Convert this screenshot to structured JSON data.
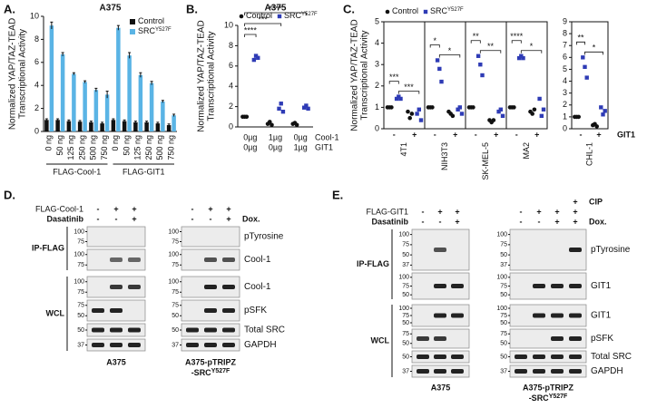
{
  "chart_data": [
    {
      "type": "bar",
      "panel_label": "A.",
      "title": "A375",
      "y_label": [
        "Normalized YAP/TAZ-TEAD",
        "Transcriptional Activity"
      ],
      "categories": [
        "0 ng",
        "50 ng",
        "125 ng",
        "250 ng",
        "500 ng",
        "750 ng",
        "0 ng",
        "50 ng",
        "125 ng",
        "250 ng",
        "500 ng",
        "750 ng"
      ],
      "group_labels": [
        "FLAG-Cool-1",
        "FLAG-GIT1"
      ],
      "series": [
        {
          "name": "Control",
          "color": "#111111",
          "values": [
            1.0,
            1.0,
            0.9,
            0.85,
            0.8,
            0.7,
            1.0,
            0.9,
            0.8,
            0.8,
            0.7,
            0.55
          ],
          "errors": [
            0.1,
            0.1,
            0.1,
            0.1,
            0.1,
            0.1,
            0.1,
            0.1,
            0.1,
            0.1,
            0.1,
            0.1
          ]
        },
        {
          "name": "SRC",
          "name_superscript": "Y527F",
          "color": "#5ab4e5",
          "values": [
            9.2,
            6.7,
            5.0,
            4.3,
            3.6,
            3.2,
            9.0,
            6.6,
            4.9,
            4.2,
            2.6,
            1.4
          ],
          "errors": [
            0.3,
            0.15,
            0.1,
            0.1,
            0.15,
            0.3,
            0.2,
            0.25,
            0.2,
            0.15,
            0.1,
            0.1
          ]
        }
      ],
      "ylim": [
        0,
        10
      ],
      "yticks": [
        0,
        2,
        4,
        6,
        8,
        10
      ],
      "legend": "upper right"
    },
    {
      "type": "dot",
      "panel_label": "B.",
      "title": "A375",
      "y_label": [
        "Normalized YAP/TAZ-TEAD",
        "Transcriptional Activity"
      ],
      "x_rows": [
        {
          "label": "Cool-1",
          "values": [
            "0µg",
            "1µg",
            "0µg"
          ]
        },
        {
          "label": "GIT1",
          "values": [
            "0µg",
            "0µg",
            "1µg"
          ]
        }
      ],
      "series": [
        {
          "name": "Control",
          "color": "#111111",
          "marker": "circle",
          "values": [
            [
              1.0,
              1.0,
              1.0
            ],
            [
              0.3,
              0.5,
              0.2
            ],
            [
              0.3,
              0.4,
              0.2
            ]
          ]
        },
        {
          "name": "SRC",
          "name_superscript": "Y527F",
          "color": "#2e3bb5",
          "marker": "square",
          "values": [
            [
              6.6,
              7.0,
              6.8
            ],
            [
              1.8,
              2.3,
              1.5
            ],
            [
              1.9,
              2.1,
              1.8
            ]
          ]
        }
      ],
      "significance": [
        "****",
        "***",
        "****"
      ],
      "ylim": [
        0,
        10
      ],
      "yticks": [
        0,
        2,
        4,
        6,
        8,
        10
      ],
      "legend": "top"
    },
    {
      "type": "dot",
      "panel_label": "C.",
      "title": "4T1",
      "y_label": [
        "Normalized YAP/TAZ-TEAD",
        "Transcriptional Activity"
      ],
      "categories": [
        "-",
        "+"
      ],
      "series": [
        {
          "name": "Control",
          "color": "#111111",
          "marker": "circle",
          "values": [
            [
              1.0,
              1.0,
              1.0
            ],
            [
              0.8,
              0.5,
              0.7
            ]
          ]
        },
        {
          "name": "SRC",
          "name_superscript": "Y527F",
          "color": "#2e3bb5",
          "marker": "square",
          "values": [
            [
              1.4,
              1.5,
              1.4
            ],
            [
              0.7,
              0.9,
              0.4
            ]
          ]
        }
      ],
      "significance": [
        "***",
        "***"
      ],
      "ylim": [
        0,
        5
      ],
      "yticks": [
        0,
        1,
        2,
        3,
        4,
        5
      ],
      "legend": "top"
    },
    {
      "type": "dot",
      "title": "NIH3T3",
      "categories": [
        "-",
        "+"
      ],
      "series": [
        {
          "color": "#111111",
          "marker": "circle",
          "values": [
            [
              1.0,
              1.0,
              1.0
            ],
            [
              0.8,
              0.7,
              0.6
            ]
          ]
        },
        {
          "color": "#2e3bb5",
          "marker": "square",
          "values": [
            [
              3.2,
              2.8,
              2.2
            ],
            [
              0.9,
              1.0,
              0.7
            ]
          ]
        }
      ],
      "significance": [
        "*",
        "*"
      ],
      "ylim": [
        0,
        5
      ]
    },
    {
      "type": "dot",
      "title": "SK-MEL-5",
      "categories": [
        "-",
        "+"
      ],
      "series": [
        {
          "color": "#111111",
          "marker": "circle",
          "values": [
            [
              1.0,
              1.0,
              1.0
            ],
            [
              0.4,
              0.3,
              0.4
            ]
          ]
        },
        {
          "color": "#2e3bb5",
          "marker": "square",
          "values": [
            [
              3.4,
              3.0,
              2.5
            ],
            [
              0.8,
              0.9,
              0.6
            ]
          ]
        }
      ],
      "significance": [
        "**",
        "**"
      ],
      "ylim": [
        0,
        5
      ]
    },
    {
      "type": "dot",
      "title": "MA2",
      "categories": [
        "-",
        "+"
      ],
      "series": [
        {
          "color": "#111111",
          "marker": "circle",
          "values": [
            [
              1.0,
              1.0,
              1.0
            ],
            [
              0.8,
              0.7,
              0.9
            ]
          ]
        },
        {
          "color": "#2e3bb5",
          "marker": "square",
          "values": [
            [
              3.3,
              3.4,
              3.3
            ],
            [
              1.4,
              0.6,
              0.9
            ]
          ]
        }
      ],
      "significance": [
        "****",
        "*"
      ],
      "ylim": [
        0,
        5
      ]
    },
    {
      "type": "dot",
      "title": "CHL-1",
      "categories": [
        "-",
        "+"
      ],
      "x_label": "GIT1",
      "series": [
        {
          "color": "#111111",
          "marker": "circle",
          "values": [
            [
              1.0,
              1.0,
              1.0
            ],
            [
              0.3,
              0.4,
              0.2
            ]
          ]
        },
        {
          "color": "#2e3bb5",
          "marker": "square",
          "values": [
            [
              6.0,
              5.2,
              4.3
            ],
            [
              1.8,
              1.2,
              1.5
            ]
          ]
        }
      ],
      "significance": [
        "**",
        "*"
      ],
      "ylim": [
        0,
        9
      ],
      "yticks": [
        0,
        1,
        2,
        3,
        4,
        5,
        6,
        7,
        8,
        9
      ]
    }
  ],
  "blots": [
    {
      "panel_label": "D.",
      "treatments": [
        {
          "label": "FLAG-Cool-1",
          "left": [
            "-",
            "+",
            "+"
          ],
          "right": [
            "-",
            "+",
            "+"
          ]
        },
        {
          "label": "Dasatinib",
          "color": "#e0242b",
          "left": [
            "-",
            "-",
            "+"
          ]
        },
        {
          "label": "Dox.",
          "color": "#2b57c5",
          "right": [
            "-",
            "-",
            "+"
          ]
        }
      ],
      "sections": [
        {
          "label": "IP-FLAG",
          "rows": [
            {
              "label": "pTyrosine",
              "markers_left": [
                100,
                75
              ],
              "markers_right": [
                100,
                75
              ]
            },
            {
              "label": "Cool-1",
              "markers_left": [
                100,
                75
              ],
              "markers_right": [
                100,
                75
              ]
            }
          ]
        },
        {
          "label": "WCL",
          "rows": [
            {
              "label": "Cool-1",
              "markers_left": [
                100,
                75
              ],
              "markers_right": [
                100,
                75
              ]
            },
            {
              "label": "pSFK",
              "markers_left": [
                75,
                50
              ],
              "markers_right": [
                75,
                50
              ]
            },
            {
              "label": "Total SRC",
              "markers_left": [
                50
              ],
              "markers_right": [
                50
              ]
            },
            {
              "label": "GAPDH",
              "markers_left": [
                37
              ],
              "markers_right": [
                37
              ]
            }
          ]
        }
      ],
      "cell_lines": [
        {
          "text": "A375"
        },
        {
          "text": "A375-pTRIPZ",
          "text2": "-SRC",
          "superscript": "Y527F"
        }
      ]
    },
    {
      "panel_label": "E.",
      "treatments": [
        {
          "label": "CIP",
          "right": [
            "",
            "",
            "",
            "+"
          ]
        },
        {
          "label": "FLAG-GIT1",
          "left": [
            "-",
            "+",
            "+"
          ],
          "right": [
            "-",
            "+",
            "+",
            "+"
          ]
        },
        {
          "label": "Dasatinib",
          "color": "#e0242b",
          "left": [
            "-",
            "-",
            "+"
          ]
        },
        {
          "label": "Dox.",
          "color": "#2b57c5",
          "right": [
            "-",
            "-",
            "+",
            "+"
          ]
        }
      ],
      "sections": [
        {
          "label": "IP-FLAG",
          "rows": [
            {
              "label": "pTyrosine",
              "markers_left": [
                100,
                75,
                50,
                37
              ],
              "markers_right": [
                100,
                75,
                50,
                37
              ]
            },
            {
              "label": "GIT1",
              "markers_left": [
                100,
                75,
                50
              ],
              "markers_right": [
                100,
                75,
                50
              ]
            }
          ]
        },
        {
          "label": "WCL",
          "rows": [
            {
              "label": "GIT1",
              "markers_left": [
                100,
                75,
                50
              ],
              "markers_right": [
                100,
                75,
                50
              ]
            },
            {
              "label": "pSFK",
              "markers_left": [
                75,
                50
              ],
              "markers_right": [
                75,
                50
              ]
            },
            {
              "label": "Total SRC",
              "markers_left": [
                50
              ],
              "markers_right": [
                50
              ]
            },
            {
              "label": "GAPDH",
              "markers_left": [
                37
              ],
              "markers_right": [
                37
              ]
            }
          ]
        }
      ],
      "cell_lines": [
        {
          "text": "A375"
        },
        {
          "text": "A375-pTRIPZ",
          "text2": "-SRC",
          "superscript": "Y527F"
        }
      ]
    }
  ]
}
